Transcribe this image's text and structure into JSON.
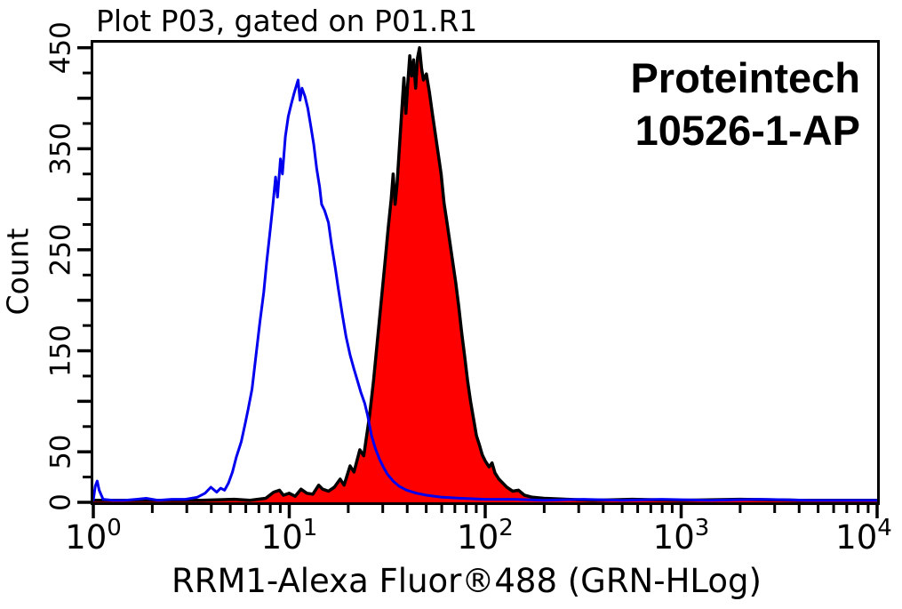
{
  "annotation": {
    "line1": "Proteintech",
    "line2": "10526-1-AP"
  },
  "colors": {
    "background": "#ffffff",
    "axis": "#000000",
    "text": "#000000",
    "blue_curve": "#0000ee",
    "red_fill": "#ff0000",
    "red_outline": "#000000"
  },
  "chart_data": {
    "type": "line",
    "subtype": "flow-cytometry-overlay-histogram",
    "title": "Plot P03, gated on P01.R1",
    "xlabel": "RRM1-Alexa Fluor®488 (GRN-HLog)",
    "ylabel": "Count",
    "x_scale": "log10",
    "x_range_log10": [
      0,
      4
    ],
    "x_major_tick_exponents": [
      0,
      1,
      2,
      3,
      4
    ],
    "x_tick_base": "10",
    "x_minor_tick_multiples": [
      2,
      3,
      4,
      5,
      6,
      7,
      8,
      9
    ],
    "ylim": [
      0,
      455
    ],
    "y_tick_step": 25,
    "y_long_tick_step": 50,
    "y_labeled_ticks": [
      0,
      50,
      150,
      250,
      350,
      450
    ],
    "grid": false,
    "legend_position": "none",
    "series": [
      {
        "name": "blue-open-histogram-control",
        "stroke": "#0000ee",
        "fill": "none",
        "peak": {
          "x_approx": 11,
          "count": 418
        },
        "points_log10x_count": [
          [
            0.0,
            2
          ],
          [
            0.01,
            16
          ],
          [
            0.02,
            21
          ],
          [
            0.03,
            12
          ],
          [
            0.05,
            3
          ],
          [
            0.1,
            2
          ],
          [
            0.16,
            2
          ],
          [
            0.22,
            3
          ],
          [
            0.27,
            4
          ],
          [
            0.33,
            2
          ],
          [
            0.4,
            3
          ],
          [
            0.47,
            3
          ],
          [
            0.53,
            5
          ],
          [
            0.57,
            9
          ],
          [
            0.6,
            15
          ],
          [
            0.63,
            10
          ],
          [
            0.65,
            14
          ],
          [
            0.67,
            12
          ],
          [
            0.69,
            19
          ],
          [
            0.71,
            30
          ],
          [
            0.73,
            45
          ],
          [
            0.755,
            60
          ],
          [
            0.775,
            78
          ],
          [
            0.79,
            92
          ],
          [
            0.81,
            112
          ],
          [
            0.83,
            145
          ],
          [
            0.85,
            178
          ],
          [
            0.87,
            208
          ],
          [
            0.885,
            238
          ],
          [
            0.9,
            265
          ],
          [
            0.915,
            292
          ],
          [
            0.93,
            322
          ],
          [
            0.94,
            302
          ],
          [
            0.955,
            340
          ],
          [
            0.965,
            325
          ],
          [
            0.98,
            362
          ],
          [
            0.995,
            382
          ],
          [
            1.01,
            394
          ],
          [
            1.025,
            405
          ],
          [
            1.045,
            418
          ],
          [
            1.055,
            398
          ],
          [
            1.065,
            410
          ],
          [
            1.08,
            402
          ],
          [
            1.095,
            390
          ],
          [
            1.11,
            372
          ],
          [
            1.125,
            354
          ],
          [
            1.14,
            330
          ],
          [
            1.155,
            312
          ],
          [
            1.165,
            295
          ],
          [
            1.18,
            289
          ],
          [
            1.2,
            277
          ],
          [
            1.215,
            256
          ],
          [
            1.235,
            232
          ],
          [
            1.25,
            212
          ],
          [
            1.27,
            187
          ],
          [
            1.29,
            164
          ],
          [
            1.31,
            146
          ],
          [
            1.33,
            132
          ],
          [
            1.35,
            119
          ],
          [
            1.365,
            109
          ],
          [
            1.385,
            98
          ],
          [
            1.4,
            86
          ],
          [
            1.42,
            66
          ],
          [
            1.44,
            53
          ],
          [
            1.46,
            43
          ],
          [
            1.48,
            35
          ],
          [
            1.5,
            28
          ],
          [
            1.53,
            21
          ],
          [
            1.56,
            16
          ],
          [
            1.6,
            12
          ],
          [
            1.65,
            9
          ],
          [
            1.7,
            7
          ],
          [
            1.78,
            5
          ],
          [
            1.88,
            4
          ],
          [
            2.0,
            3
          ],
          [
            2.15,
            3
          ],
          [
            2.3,
            2
          ],
          [
            2.5,
            3
          ],
          [
            2.7,
            2
          ],
          [
            2.9,
            3
          ],
          [
            3.15,
            2
          ],
          [
            3.4,
            3
          ],
          [
            3.65,
            2
          ],
          [
            4.0,
            2
          ]
        ]
      },
      {
        "name": "red-filled-histogram-stained",
        "stroke": "#000000",
        "fill": "#ff0000",
        "peak": {
          "x_approx": 46,
          "count": 450
        },
        "points_log10x_count": [
          [
            0.0,
            2
          ],
          [
            0.3,
            2
          ],
          [
            0.55,
            2
          ],
          [
            0.72,
            3
          ],
          [
            0.8,
            2
          ],
          [
            0.88,
            4
          ],
          [
            0.92,
            10
          ],
          [
            0.95,
            12
          ],
          [
            0.97,
            7
          ],
          [
            1.0,
            9
          ],
          [
            1.03,
            6
          ],
          [
            1.06,
            13
          ],
          [
            1.09,
            9
          ],
          [
            1.12,
            8
          ],
          [
            1.15,
            17
          ],
          [
            1.17,
            13
          ],
          [
            1.2,
            11
          ],
          [
            1.23,
            15
          ],
          [
            1.26,
            23
          ],
          [
            1.28,
            17
          ],
          [
            1.31,
            36
          ],
          [
            1.33,
            30
          ],
          [
            1.36,
            52
          ],
          [
            1.38,
            46
          ],
          [
            1.41,
            86
          ],
          [
            1.43,
            120
          ],
          [
            1.45,
            160
          ],
          [
            1.47,
            200
          ],
          [
            1.49,
            240
          ],
          [
            1.505,
            272
          ],
          [
            1.52,
            300
          ],
          [
            1.53,
            325
          ],
          [
            1.54,
            295
          ],
          [
            1.55,
            315
          ],
          [
            1.56,
            345
          ],
          [
            1.57,
            375
          ],
          [
            1.585,
            420
          ],
          [
            1.595,
            385
          ],
          [
            1.605,
            415
          ],
          [
            1.615,
            442
          ],
          [
            1.625,
            422
          ],
          [
            1.635,
            438
          ],
          [
            1.645,
            410
          ],
          [
            1.655,
            440
          ],
          [
            1.665,
            450
          ],
          [
            1.675,
            430
          ],
          [
            1.685,
            418
          ],
          [
            1.7,
            424
          ],
          [
            1.715,
            406
          ],
          [
            1.73,
            385
          ],
          [
            1.745,
            365
          ],
          [
            1.76,
            345
          ],
          [
            1.775,
            325
          ],
          [
            1.79,
            296
          ],
          [
            1.805,
            277
          ],
          [
            1.82,
            257
          ],
          [
            1.835,
            237
          ],
          [
            1.85,
            217
          ],
          [
            1.865,
            194
          ],
          [
            1.88,
            168
          ],
          [
            1.895,
            145
          ],
          [
            1.91,
            120
          ],
          [
            1.925,
            100
          ],
          [
            1.94,
            83
          ],
          [
            1.955,
            66
          ],
          [
            1.97,
            57
          ],
          [
            1.985,
            47
          ],
          [
            2.0,
            41
          ],
          [
            2.02,
            35
          ],
          [
            2.035,
            39
          ],
          [
            2.05,
            29
          ],
          [
            2.07,
            23
          ],
          [
            2.09,
            19
          ],
          [
            2.11,
            15
          ],
          [
            2.14,
            11
          ],
          [
            2.17,
            12
          ],
          [
            2.2,
            7
          ],
          [
            2.24,
            5
          ],
          [
            2.3,
            4
          ],
          [
            2.42,
            3
          ],
          [
            2.55,
            2
          ],
          [
            2.75,
            3
          ],
          [
            3.0,
            2
          ],
          [
            3.3,
            3
          ],
          [
            3.6,
            2
          ],
          [
            4.0,
            2
          ]
        ]
      }
    ]
  }
}
